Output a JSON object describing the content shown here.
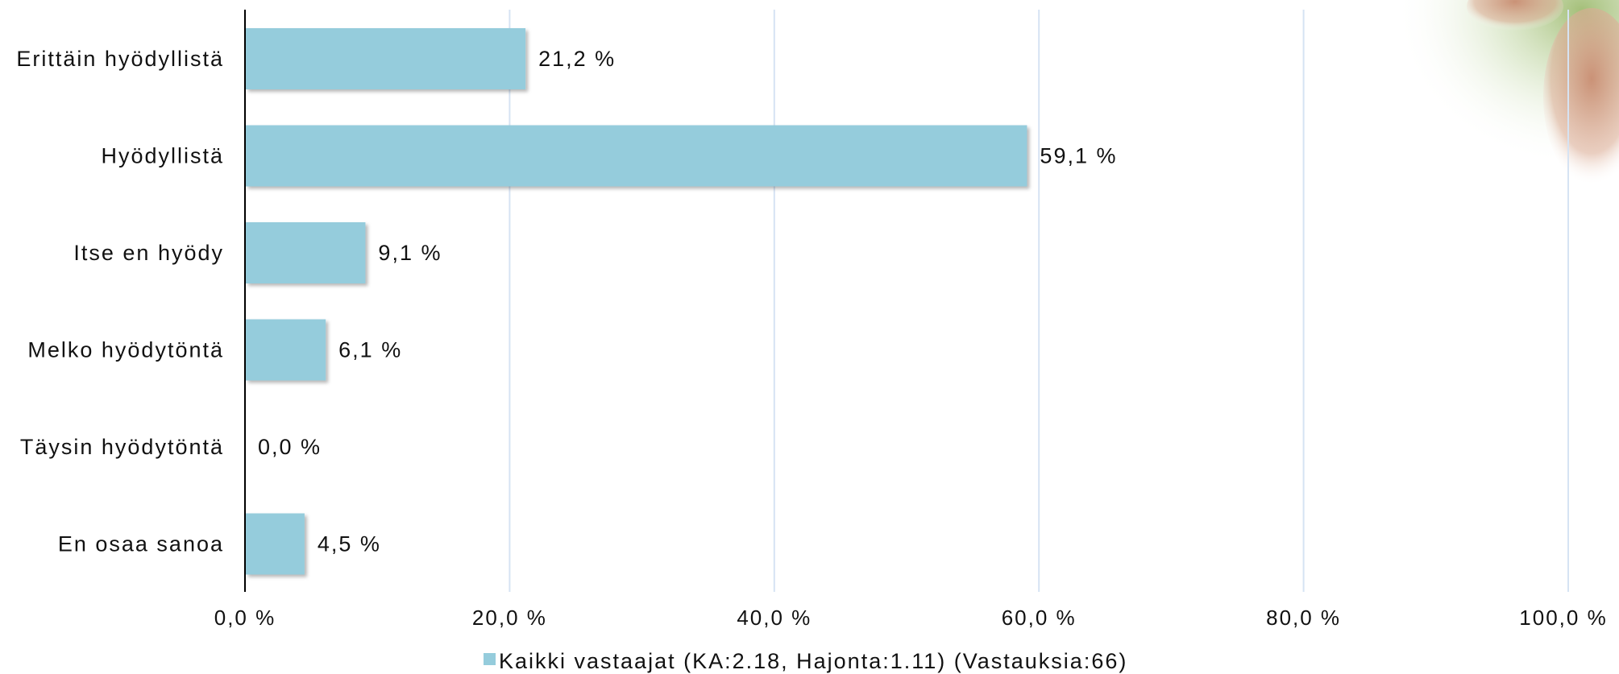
{
  "chart_data": {
    "type": "bar",
    "orientation": "horizontal",
    "title": "",
    "xlabel": "",
    "ylabel": "",
    "categories": [
      "Erittäin hyödyllistä",
      "Hyödyllistä",
      "Itse en hyödy",
      "Melko hyödytöntä",
      "Täysin hyödytöntä",
      "En osaa sanoa"
    ],
    "series": [
      {
        "name": "Kaikki vastaajat (KA:2.18, Hajonta:1.11) (Vastauksia:66)",
        "values": [
          21.2,
          59.1,
          9.1,
          6.1,
          0.0,
          4.5
        ],
        "value_labels": [
          "21,2 %",
          "59,1 %",
          "9,1 %",
          "6,1 %",
          "0,0 %",
          "4,5 %"
        ]
      }
    ],
    "xlim": [
      0,
      100
    ],
    "x_ticks": [
      0,
      20,
      40,
      60,
      80,
      100
    ],
    "x_tick_labels": [
      "0,0 %",
      "20,0 %",
      "40,0 %",
      "60,0 %",
      "80,0 %",
      "100,0 %"
    ],
    "grid": "vertical",
    "legend_position": "bottom-center",
    "colors": {
      "bar": "#95CCDC",
      "grid": "#D6E3F3",
      "axis": "#000000",
      "text": "#111111",
      "legend_swatch": "#95CCDC"
    },
    "decoration": "photo-corner-top-right"
  }
}
